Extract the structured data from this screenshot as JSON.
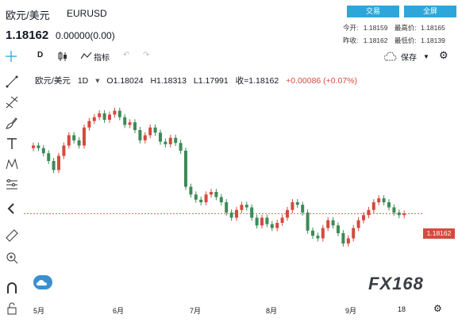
{
  "header": {
    "pair_name": "欧元/美元",
    "pair_code": "EURUSD",
    "price": "1.18162",
    "change": "0.00000(0.00)",
    "trade_button": "交易",
    "full_screen_button": "全屏",
    "today_open_label": "今开:",
    "today_open": "1.18159",
    "high_label": "最高价:",
    "high": "1.18165",
    "prev_close_label": "昨收:",
    "prev_close": "1.18162",
    "low_label": "最低价:",
    "low": "1.18139"
  },
  "toolbar": {
    "interval": "D",
    "indicators": "指标",
    "save": "保存"
  },
  "legend": {
    "pair": "欧元/美元",
    "interval": "1D",
    "open": "O1.18024",
    "high": "H1.18313",
    "low": "L1.17991",
    "close": "收=1.18162",
    "change": "+0.00086 (+0.07%)"
  },
  "last_price_label": "1.18162",
  "watermark": "FX168",
  "x_ticks": [
    "5月",
    "6月",
    "7月",
    "8月",
    "9月",
    "18"
  ],
  "colors": {
    "up": "#d54a3f",
    "down": "#3d8a57",
    "accent": "#2fa6d9"
  },
  "chart_data": {
    "type": "candlestick",
    "y_range": [
      1.15,
      1.23
    ],
    "series": [
      {
        "values": [
          1.208,
          1.207,
          1.205,
          1.202,
          1.1985,
          1.204,
          1.208,
          1.212,
          1.21,
          1.208,
          1.215,
          1.2175,
          1.219,
          1.2205,
          1.218,
          1.22,
          1.2215,
          1.219,
          1.216,
          1.217,
          1.214,
          1.21,
          1.212,
          1.215,
          1.213,
          1.2095,
          1.2085,
          1.211,
          1.209,
          1.206,
          1.192,
          1.189,
          1.187,
          1.186,
          1.189,
          1.19,
          1.188,
          1.186,
          1.182,
          1.18,
          1.183,
          1.185,
          1.184,
          1.18,
          1.177,
          1.18,
          1.1775,
          1.176,
          1.178,
          1.18,
          1.183,
          1.186,
          1.185,
          1.182,
          1.175,
          1.173,
          1.172,
          1.176,
          1.179,
          1.177,
          1.174,
          1.17,
          1.172,
          1.176,
          1.179,
          1.181,
          1.183,
          1.186,
          1.1875,
          1.186,
          1.184,
          1.182,
          1.181,
          1.1816
        ]
      }
    ]
  }
}
